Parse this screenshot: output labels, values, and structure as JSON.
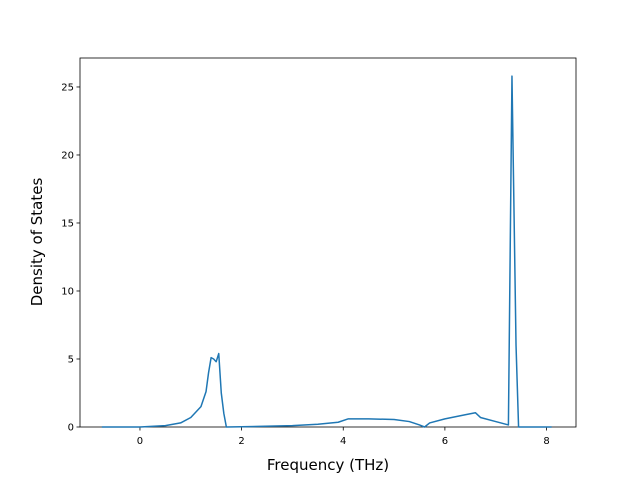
{
  "chart_data": {
    "type": "line",
    "xlabel": "Frequency (THz)",
    "ylabel": "Density of States",
    "color": "#1f77b4",
    "x": [
      -0.75,
      0,
      0.5,
      0.8,
      1.0,
      1.2,
      1.3,
      1.35,
      1.4,
      1.45,
      1.5,
      1.55,
      1.6,
      1.65,
      1.7,
      2.0,
      3.0,
      3.5,
      3.9,
      4.1,
      4.5,
      5.0,
      5.3,
      5.5,
      5.6,
      5.7,
      6.0,
      6.4,
      6.6,
      6.7,
      7.0,
      7.25,
      7.32,
      7.4,
      7.45,
      8.1
    ],
    "values": [
      0,
      0,
      0.1,
      0.3,
      0.7,
      1.5,
      2.6,
      4.0,
      5.1,
      5.0,
      4.8,
      5.4,
      2.5,
      1.0,
      0,
      0.02,
      0.1,
      0.2,
      0.35,
      0.6,
      0.6,
      0.55,
      0.4,
      0.15,
      0,
      0.3,
      0.6,
      0.9,
      1.05,
      0.7,
      0.4,
      0.15,
      25.8,
      6.0,
      0,
      0
    ],
    "xlim": [
      -1.18,
      8.58
    ],
    "xticks": [
      0,
      2,
      4,
      6,
      8
    ],
    "ylim": [
      0,
      27.13
    ],
    "yticks": [
      0,
      5,
      10,
      15,
      20,
      25
    ]
  }
}
